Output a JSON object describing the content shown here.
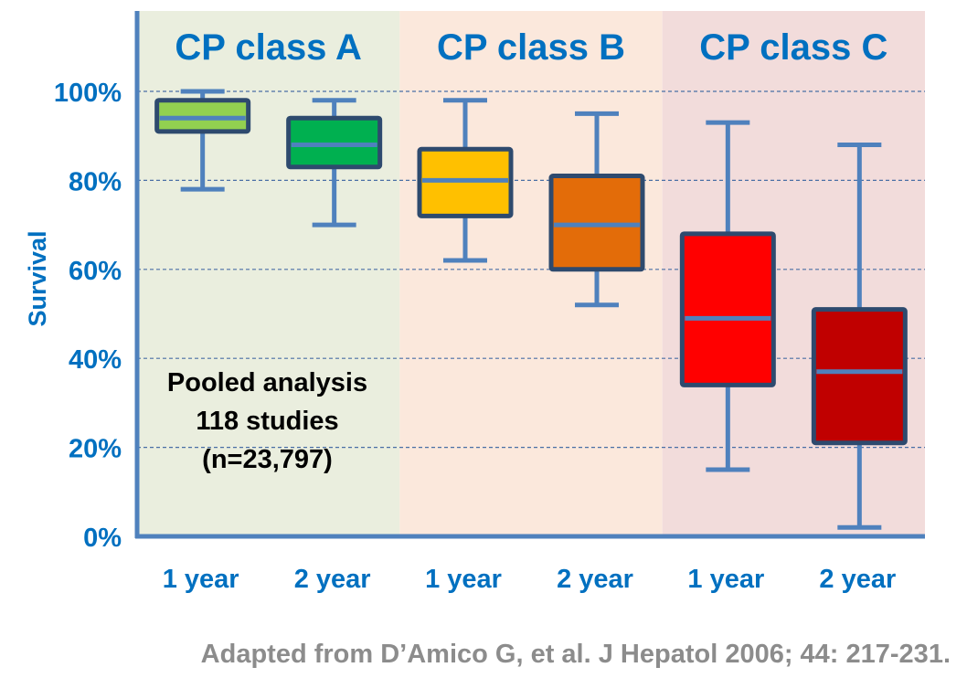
{
  "chart_data": {
    "type": "boxplot",
    "title": "",
    "ylabel": "Survival",
    "xlabel": "",
    "ylim": [
      0,
      100
    ],
    "yticks": [
      {
        "value": 0,
        "label": "0%"
      },
      {
        "value": 20,
        "label": "20%"
      },
      {
        "value": 40,
        "label": "40%"
      },
      {
        "value": 60,
        "label": "60%"
      },
      {
        "value": 80,
        "label": "80%"
      },
      {
        "value": 100,
        "label": "100%"
      }
    ],
    "grid": true,
    "groups": [
      {
        "label": "CP class A",
        "background": "#eaeede",
        "boxes": [
          {
            "label": "1 year",
            "min": 78,
            "q1": 91,
            "median": 94,
            "q3": 98,
            "max": 100,
            "color": "#92d050"
          },
          {
            "label": "2 year",
            "min": 70,
            "q1": 83,
            "median": 88,
            "q3": 94,
            "max": 98,
            "color": "#00b050"
          }
        ]
      },
      {
        "label": "CP class B",
        "background": "#fbe8dc",
        "boxes": [
          {
            "label": "1 year",
            "min": 62,
            "q1": 72,
            "median": 80,
            "q3": 87,
            "max": 98,
            "color": "#ffc000"
          },
          {
            "label": "2 year",
            "min": 52,
            "q1": 60,
            "median": 70,
            "q3": 81,
            "max": 95,
            "color": "#e36c09"
          }
        ]
      },
      {
        "label": "CP class C",
        "background": "#f2dcdb",
        "boxes": [
          {
            "label": "1 year",
            "min": 15,
            "q1": 34,
            "median": 49,
            "q3": 68,
            "max": 93,
            "color": "#ff0000"
          },
          {
            "label": "2 year",
            "min": 2,
            "q1": 21,
            "median": 37,
            "q3": 51,
            "max": 88,
            "color": "#c00000"
          }
        ]
      }
    ],
    "annotations": [
      "Pooled analysis",
      "118 studies",
      "(n=23,797)"
    ],
    "colors": {
      "axis": "#4f81bd",
      "text": "#0070c0",
      "box_border": "#2e4a6e",
      "median": "#4f81bd",
      "grid": "#4a6fa5"
    }
  },
  "citation": "Adapted from D’Amico G, et al. J Hepatol 2006; 44: 217-231."
}
